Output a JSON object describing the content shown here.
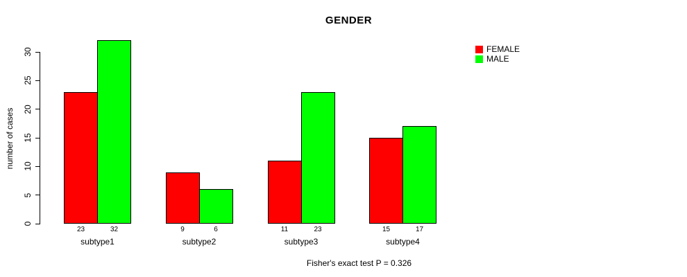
{
  "chart_data": {
    "type": "bar",
    "title": "GENDER",
    "ylabel": "number of cases",
    "xlabel": "",
    "categories": [
      "subtype1",
      "subtype2",
      "subtype3",
      "subtype4"
    ],
    "series": [
      {
        "name": "FEMALE",
        "color": "#ff0000",
        "values": [
          23,
          9,
          11,
          15
        ]
      },
      {
        "name": "MALE",
        "color": "#00ff00",
        "values": [
          32,
          6,
          23,
          17
        ]
      }
    ],
    "bar_value_labels": [
      [
        "23",
        "9",
        "11",
        "15"
      ],
      [
        "32",
        "6",
        "23",
        "17"
      ]
    ],
    "yticks": [
      0,
      5,
      10,
      15,
      20,
      25,
      30
    ],
    "ylim": [
      0,
      32
    ],
    "grid": false,
    "legend_position": "topright",
    "bar_border_color": "#000000",
    "footnote": "Fisher's exact test P = 0.326"
  }
}
